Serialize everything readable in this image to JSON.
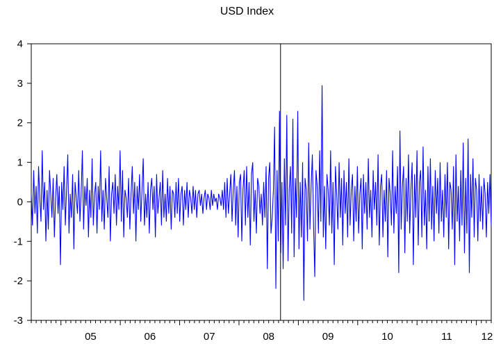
{
  "chart_data": {
    "type": "line",
    "title": "USD Index",
    "xlabel": "",
    "ylabel": "",
    "x_tick_labels": [
      "05",
      "06",
      "07",
      "08",
      "09",
      "10",
      "11",
      "12"
    ],
    "x_range_years": [
      2004.5,
      2012.25
    ],
    "ylim": [
      -3,
      4
    ],
    "y_ticks": [
      -3,
      -2,
      -1,
      0,
      1,
      2,
      3,
      4
    ],
    "grid": false,
    "legend": "none",
    "vertical_marker_x": 2008.7,
    "series": [
      {
        "color": "#0000ff",
        "x_start": 2004.5,
        "x_end": 2012.25,
        "values": [
          0.2,
          -0.6,
          0.8,
          -0.3,
          0.4,
          -0.8,
          0.9,
          0.1,
          -0.5,
          1.3,
          -0.2,
          0.5,
          -1.0,
          0.3,
          -0.7,
          0.8,
          0.2,
          -0.4,
          0.6,
          -0.9,
          0.1,
          0.7,
          -0.3,
          0.4,
          -1.6,
          0.5,
          -0.2,
          0.9,
          -0.6,
          0.3,
          1.2,
          -0.8,
          0.2,
          -0.4,
          0.7,
          -1.2,
          0.5,
          0.1,
          -0.3,
          0.8,
          -0.5,
          0.2,
          1.3,
          -0.7,
          0.4,
          -0.1,
          0.6,
          -0.9,
          0.3,
          -0.4,
          1.1,
          -0.6,
          0.2,
          0.5,
          -0.8,
          0.4,
          -0.2,
          1.3,
          -0.5,
          0.3,
          -0.7,
          0.6,
          0.1,
          -0.4,
          0.9,
          -1.0,
          0.2,
          0.5,
          -0.3,
          0.7,
          -0.6,
          0.4,
          -0.2,
          1.3,
          -0.5,
          0.8,
          -0.9,
          0.3,
          0.1,
          -0.4,
          0.6,
          -0.7,
          0.2,
          0.9,
          -0.3,
          0.5,
          -1.0,
          0.4,
          -0.2,
          0.7,
          -0.5,
          0.3,
          1.1,
          -0.6,
          0.2,
          -0.4,
          0.5,
          -0.8,
          0.3,
          0.6,
          -0.2,
          0.4,
          -0.9,
          0.7,
          -0.3,
          0.1,
          0.5,
          -0.6,
          0.8,
          -0.4,
          0.2,
          -0.5,
          0.6,
          -0.3,
          0.4,
          -0.7,
          0.3,
          0.2,
          -0.4,
          0.5,
          -0.3,
          0.6,
          -0.5,
          0.2,
          0.4,
          -0.6,
          0.3,
          -0.2,
          0.5,
          -0.4,
          0.3,
          0.1,
          -0.3,
          0.4,
          -0.2,
          0.3,
          -0.4,
          0.2,
          0.3,
          -0.1,
          0.2,
          -0.3,
          0.1,
          0.3,
          -0.2,
          0.2,
          0.1,
          -0.2,
          0.3,
          -0.1,
          0.2,
          0.0,
          0.1,
          -0.2,
          0.2,
          0.1,
          -0.1,
          0.3,
          -0.2,
          0.5,
          -0.4,
          0.6,
          -0.3,
          0.2,
          0.7,
          -0.5,
          0.3,
          0.8,
          -0.6,
          0.4,
          -0.9,
          0.5,
          0.7,
          -1.0,
          0.3,
          0.8,
          -0.6,
          0.9,
          -0.4,
          0.5,
          -1.1,
          0.7,
          1.0,
          -0.5,
          0.3,
          -0.8,
          0.6,
          0.4,
          -0.3,
          0.2,
          -0.6,
          0.5,
          -0.4,
          0.9,
          -1.7,
          0.6,
          1.0,
          -0.8,
          -0.4,
          0.3,
          1.9,
          -2.2,
          0.8,
          -1.0,
          2.3,
          -1.3,
          0.5,
          -1.7,
          1.1,
          -0.6,
          2.2,
          -1.5,
          0.3,
          0.9,
          -0.8,
          2.1,
          -1.4,
          0.6,
          -0.4,
          2.3,
          -1.2,
          0.5,
          -0.9,
          1.0,
          -2.5,
          0.6,
          0.3,
          -1.0,
          1.5,
          -0.7,
          0.4,
          1.2,
          -0.6,
          -1.9,
          0.8,
          0.4,
          -0.8,
          1.3,
          -0.5,
          2.95,
          -0.9,
          0.4,
          -1.2,
          0.7,
          0.3,
          -0.6,
          1.3,
          -0.8,
          0.5,
          -1.6,
          0.9,
          0.2,
          -0.7,
          1.0,
          -0.4,
          0.6,
          -1.1,
          0.8,
          -0.3,
          0.5,
          -0.9,
          1.1,
          -0.6,
          0.3,
          0.7,
          -1.0,
          0.4,
          -0.5,
          0.9,
          -0.8,
          0.2,
          0.6,
          -1.2,
          0.7,
          -0.3,
          0.5,
          -0.7,
          1.1,
          -0.4,
          0.3,
          -0.9,
          0.8,
          -0.2,
          0.5,
          -0.6,
          1.2,
          -1.1,
          0.4,
          0.7,
          -0.9,
          0.3,
          -0.5,
          0.8,
          -1.4,
          0.6,
          0.2,
          -0.6,
          1.3,
          -0.8,
          0.4,
          -0.3,
          0.9,
          -1.8,
          1.8,
          -0.7,
          0.4,
          0.9,
          -1.3,
          0.6,
          -0.5,
          1.2,
          -0.8,
          0.3,
          1.0,
          -1.6,
          0.7,
          -0.4,
          1.3,
          -1.1,
          0.5,
          0.8,
          -0.9,
          1.4,
          -0.6,
          0.3,
          -1.2,
          0.9,
          -0.5,
          1.1,
          -0.7,
          0.4,
          -1.0,
          0.8,
          -0.3,
          0.6,
          -0.8,
          1.0,
          -0.5,
          0.3,
          -0.9,
          0.7,
          -0.4,
          1.0,
          -1.2,
          0.5,
          0.3,
          -0.7,
          0.9,
          -1.6,
          1.2,
          -0.5,
          0.4,
          -1.0,
          0.8,
          -0.6,
          1.5,
          -1.3,
          0.6,
          -0.8,
          1.6,
          -1.8,
          0.7,
          -0.4,
          1.1,
          -0.9,
          0.6,
          0.3,
          -1.0,
          0.7,
          -0.5,
          0.4,
          -0.7,
          0.6,
          0.2,
          -0.9,
          0.5,
          -0.3,
          0.7,
          -0.6
        ]
      }
    ]
  }
}
